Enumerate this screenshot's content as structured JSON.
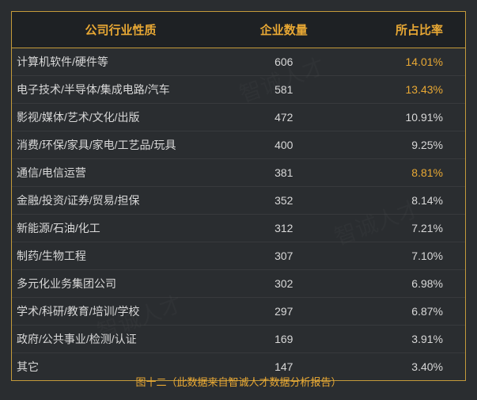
{
  "colors": {
    "background": "#2a2d30",
    "header_background": "#1e2124",
    "border": "#c49a3a",
    "header_text": "#e8a834",
    "body_text": "#d8d8d8",
    "highlight_text": "#e8a834",
    "row_divider": "rgba(100,100,100,0.25)",
    "caption_text": "#e8a834"
  },
  "typography": {
    "header_fontsize": 15,
    "body_fontsize": 14,
    "caption_fontsize": 13,
    "header_weight": "bold"
  },
  "table": {
    "type": "table",
    "columns": [
      {
        "key": "industry",
        "label": "公司行业性质",
        "align": "center_header_left_body",
        "width_pct": 48
      },
      {
        "key": "count",
        "label": "企业数量",
        "align": "center",
        "width_pct": 24
      },
      {
        "key": "percent",
        "label": "所占比率",
        "align": "right",
        "width_pct": 28
      }
    ],
    "rows": [
      {
        "industry": "计算机软件/硬件等",
        "count": "606",
        "percent": "14.01%",
        "percent_highlight": true
      },
      {
        "industry": "电子技术/半导体/集成电路/汽车",
        "count": "581",
        "percent": "13.43%",
        "percent_highlight": true
      },
      {
        "industry": "影视/媒体/艺术/文化/出版",
        "count": "472",
        "percent": "10.91%",
        "percent_highlight": false
      },
      {
        "industry": "消费/环保/家具/家电/工艺品/玩具",
        "count": "400",
        "percent": "9.25%",
        "percent_highlight": false
      },
      {
        "industry": "通信/电信运营",
        "count": "381",
        "percent": "8.81%",
        "percent_highlight": true
      },
      {
        "industry": "金融/投资/证券/贸易/担保",
        "count": "352",
        "percent": "8.14%",
        "percent_highlight": false
      },
      {
        "industry": "新能源/石油/化工",
        "count": "312",
        "percent": "7.21%",
        "percent_highlight": false
      },
      {
        "industry": "制药/生物工程",
        "count": "307",
        "percent": "7.10%",
        "percent_highlight": false
      },
      {
        "industry": "多元化业务集团公司",
        "count": "302",
        "percent": "6.98%",
        "percent_highlight": false
      },
      {
        "industry": "学术/科研/教育/培训/学校",
        "count": "297",
        "percent": "6.87%",
        "percent_highlight": false
      },
      {
        "industry": "政府/公共事业/检测/认证",
        "count": "169",
        "percent": "3.91%",
        "percent_highlight": false
      },
      {
        "industry": "其它",
        "count": "147",
        "percent": "3.40%",
        "percent_highlight": false
      }
    ]
  },
  "caption": "图十二（此数据来自智诚人才数据分析报告）",
  "watermark_text": "智诚人才"
}
